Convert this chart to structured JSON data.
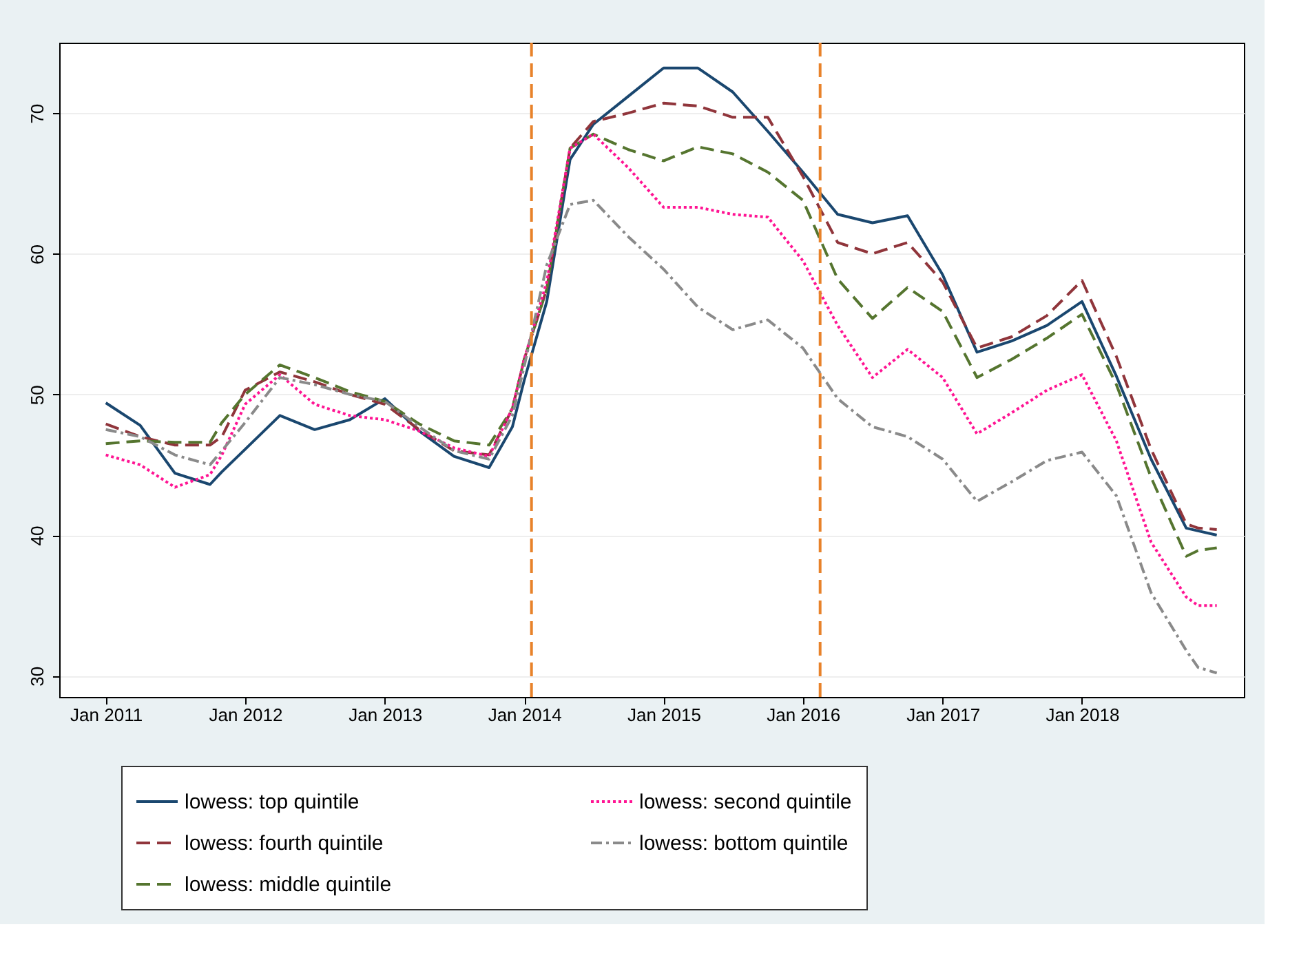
{
  "chart_data": {
    "type": "line",
    "x": [
      "2011-01",
      "2011-04",
      "2011-07",
      "2011-10",
      "2011-11",
      "2012-01",
      "2012-04",
      "2012-07",
      "2012-10",
      "2013-01",
      "2013-04",
      "2013-07",
      "2013-10",
      "2013-12",
      "2014-01",
      "2014-03",
      "2014-05",
      "2014-07",
      "2014-10",
      "2015-01",
      "2015-04",
      "2015-07",
      "2015-10",
      "2016-01",
      "2016-04",
      "2016-07",
      "2016-10",
      "2017-01",
      "2017-04",
      "2017-07",
      "2017-10",
      "2018-01",
      "2018-04",
      "2018-07",
      "2018-10",
      "2018-11",
      "2018-12-20"
    ],
    "series": [
      {
        "name": "lowess: top quintile",
        "color": "#1a476f",
        "line_style": "solid",
        "values": [
          49.4,
          47.8,
          44.4,
          43.6,
          44.5,
          46.1,
          48.5,
          47.5,
          48.2,
          49.7,
          47.4,
          45.6,
          44.8,
          47.7,
          51,
          56.6,
          66.7,
          69.2,
          71.2,
          73.2,
          73.2,
          71.5,
          68.7,
          65.8,
          62.8,
          62.2,
          62.7,
          58.5,
          53.0,
          53.8,
          54.9,
          56.6,
          51.3,
          45.4,
          40.5,
          40.3,
          40.0
        ]
      },
      {
        "name": "lowess: fourth quintile",
        "color": "#90353b",
        "line_style": "dashed",
        "values": [
          47.9,
          47.0,
          46.4,
          46.4,
          47.0,
          50.3,
          51.6,
          50.9,
          50.0,
          49.3,
          47.5,
          46.0,
          45.7,
          49.0,
          52.5,
          57.5,
          67.5,
          69.4,
          70.0,
          70.7,
          70.5,
          69.7,
          69.7,
          65.5,
          60.8,
          60.0,
          60.8,
          58.0,
          53.3,
          54.1,
          55.6,
          58.1,
          52.7,
          46.1,
          40.8,
          40.5,
          40.4
        ]
      },
      {
        "name": "lowess: middle quintile",
        "color": "#55752f",
        "line_style": "dashed",
        "values": [
          46.5,
          46.7,
          46.6,
          46.6,
          48.0,
          50.0,
          52.1,
          51.2,
          50.2,
          49.5,
          47.9,
          46.7,
          46.4,
          49.0,
          52.5,
          57.5,
          67.5,
          68.5,
          67.4,
          66.6,
          67.6,
          67.1,
          65.8,
          63.8,
          58.2,
          55.4,
          57.6,
          55.9,
          51.2,
          52.5,
          54.0,
          55.7,
          50.7,
          44.1,
          38.5,
          38.9,
          39.1
        ]
      },
      {
        "name": "lowess: second quintile",
        "color": "#ff1493",
        "line_style": "dotted",
        "values": [
          45.7,
          45.0,
          43.4,
          44.3,
          45.7,
          49.3,
          51.4,
          49.3,
          48.5,
          48.2,
          47.4,
          46.2,
          45.6,
          49.0,
          52.5,
          58.0,
          67.5,
          68.5,
          66.1,
          63.3,
          63.3,
          62.8,
          62.6,
          59.5,
          54.9,
          51.2,
          53.2,
          51.2,
          47.2,
          48.7,
          50.3,
          51.4,
          46.7,
          39.5,
          35.6,
          35.0,
          35.0
        ]
      },
      {
        "name": "lowess: bottom quintile",
        "color": "#8a8a8a",
        "line_style": "dashdot",
        "values": [
          47.5,
          47.0,
          45.7,
          45.0,
          46.0,
          48.0,
          51.2,
          50.7,
          50.0,
          49.5,
          47.7,
          46.0,
          45.4,
          48.5,
          52.0,
          59.2,
          63.5,
          63.8,
          61.2,
          58.9,
          56.2,
          54.6,
          55.3,
          53.3,
          49.7,
          47.7,
          47.0,
          45.4,
          42.4,
          43.8,
          45.3,
          45.9,
          42.8,
          35.9,
          31.8,
          30.6,
          30.2
        ]
      }
    ],
    "xlim": [
      "2010-09",
      "2019-03"
    ],
    "xticks": [
      {
        "value": "2011-01",
        "label": "Jan 2011"
      },
      {
        "value": "2012-01",
        "label": "Jan 2012"
      },
      {
        "value": "2013-01",
        "label": "Jan 2013"
      },
      {
        "value": "2014-01",
        "label": "Jan 2014"
      },
      {
        "value": "2015-01",
        "label": "Jan 2015"
      },
      {
        "value": "2016-01",
        "label": "Jan 2016"
      },
      {
        "value": "2017-01",
        "label": "Jan 2017"
      },
      {
        "value": "2018-01",
        "label": "Jan 2018"
      }
    ],
    "ylim": [
      28.5,
      75
    ],
    "yticks": [
      30,
      40,
      50,
      60,
      70
    ],
    "ref_lines": [
      {
        "axis": "x",
        "value": "2014-01-20",
        "color": "#e8822a",
        "line_style": "dashed"
      },
      {
        "axis": "x",
        "value": "2016-02-15",
        "color": "#e8822a",
        "line_style": "dashed"
      }
    ],
    "grid": "y",
    "legend": "bottom",
    "marker": "none"
  }
}
